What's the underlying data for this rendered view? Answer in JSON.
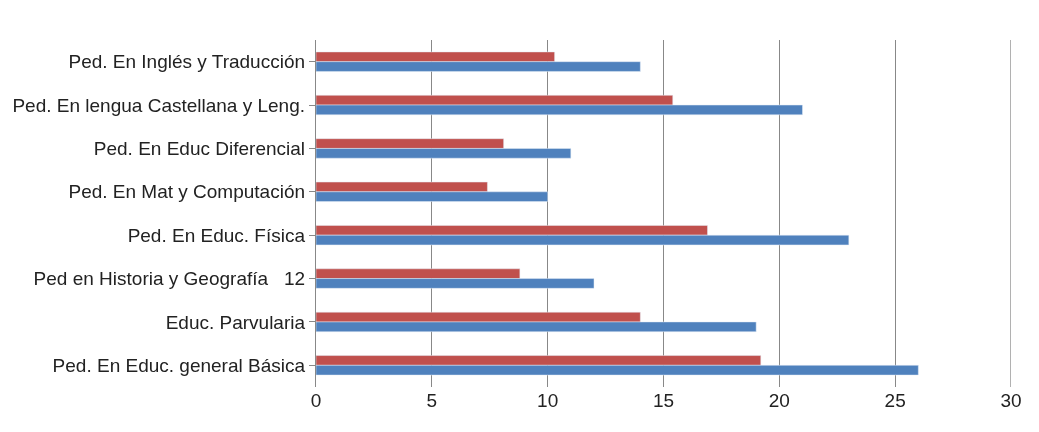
{
  "chart_data": {
    "type": "bar",
    "orientation": "horizontal",
    "categories": [
      "Ped. En Inglés y Traducción",
      "Ped. En lengua Castellana y Leng.",
      "Ped. En Educ Diferencial",
      "Ped. En Mat y Computación",
      "Ped. En Educ. Física",
      "Ped en Historia y Geografía   12",
      "Educ. Parvularia",
      "Ped. En Educ. general Básica"
    ],
    "series": [
      {
        "color": "#c0504d",
        "values": [
          10.3,
          15.4,
          8.1,
          7.4,
          16.9,
          8.8,
          14.0,
          19.2
        ]
      },
      {
        "color": "#4f81bd",
        "values": [
          14,
          21,
          11,
          10,
          23,
          12,
          19,
          26
        ]
      }
    ],
    "xlim": [
      0,
      30
    ],
    "xticks": [
      0,
      5,
      10,
      15,
      20,
      25,
      30
    ],
    "grid": "x"
  }
}
